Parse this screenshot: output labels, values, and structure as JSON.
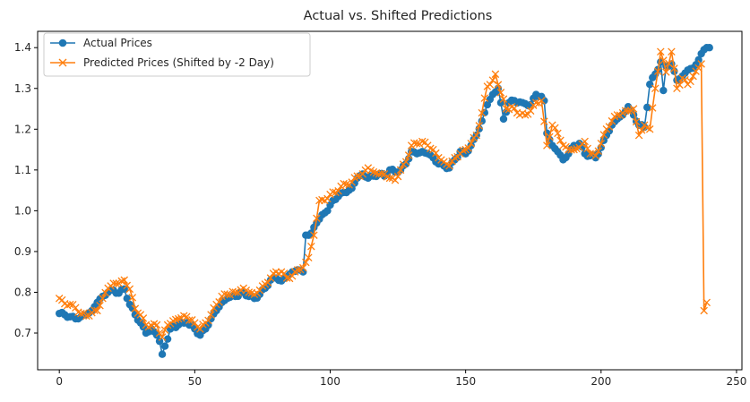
{
  "chart_data": {
    "type": "line",
    "title": "Actual vs. Shifted Predictions",
    "xlabel": "",
    "ylabel": "",
    "xlim": [
      -8,
      252
    ],
    "ylim": [
      0.61,
      1.44
    ],
    "x_ticks": [
      0,
      50,
      100,
      150,
      200,
      250
    ],
    "y_ticks": [
      0.7,
      0.8,
      0.9,
      1.0,
      1.1,
      1.2,
      1.3,
      1.4
    ],
    "x_tick_labels": [
      "0",
      "50",
      "100",
      "150",
      "200",
      "250"
    ],
    "y_tick_labels": [
      "0.7",
      "0.8",
      "0.9",
      "1.0",
      "1.1",
      "1.2",
      "1.3",
      "1.4"
    ],
    "grid": false,
    "legend_position": "top-left",
    "series": [
      {
        "name": "Actual Prices",
        "color": "#1f77b4",
        "marker": "circle",
        "anchors": [
          [
            0,
            0.748
          ],
          [
            2,
            0.745
          ],
          [
            4,
            0.74
          ],
          [
            6,
            0.735
          ],
          [
            8,
            0.74
          ],
          [
            10,
            0.745
          ],
          [
            12,
            0.755
          ],
          [
            14,
            0.775
          ],
          [
            16,
            0.79
          ],
          [
            18,
            0.8
          ],
          [
            20,
            0.805
          ],
          [
            22,
            0.798
          ],
          [
            24,
            0.808
          ],
          [
            26,
            0.77
          ],
          [
            28,
            0.745
          ],
          [
            30,
            0.725
          ],
          [
            32,
            0.7
          ],
          [
            34,
            0.71
          ],
          [
            36,
            0.695
          ],
          [
            37,
            0.68
          ],
          [
            38,
            0.648
          ],
          [
            39,
            0.668
          ],
          [
            41,
            0.71
          ],
          [
            44,
            0.72
          ],
          [
            47,
            0.725
          ],
          [
            50,
            0.71
          ],
          [
            52,
            0.695
          ],
          [
            54,
            0.71
          ],
          [
            56,
            0.735
          ],
          [
            58,
            0.755
          ],
          [
            60,
            0.775
          ],
          [
            62,
            0.785
          ],
          [
            65,
            0.79
          ],
          [
            68,
            0.8
          ],
          [
            70,
            0.79
          ],
          [
            72,
            0.785
          ],
          [
            74,
            0.795
          ],
          [
            76,
            0.81
          ],
          [
            78,
            0.83
          ],
          [
            80,
            0.835
          ],
          [
            82,
            0.828
          ],
          [
            84,
            0.838
          ],
          [
            86,
            0.85
          ],
          [
            88,
            0.855
          ],
          [
            90,
            0.85
          ],
          [
            91,
            0.94
          ],
          [
            93,
            0.945
          ],
          [
            95,
            0.97
          ],
          [
            97,
            0.99
          ],
          [
            99,
            1.0
          ],
          [
            101,
            1.025
          ],
          [
            103,
            1.035
          ],
          [
            105,
            1.045
          ],
          [
            108,
            1.055
          ],
          [
            110,
            1.08
          ],
          [
            112,
            1.09
          ],
          [
            114,
            1.08
          ],
          [
            116,
            1.085
          ],
          [
            118,
            1.09
          ],
          [
            120,
            1.085
          ],
          [
            122,
            1.1
          ],
          [
            124,
            1.095
          ],
          [
            126,
            1.1
          ],
          [
            128,
            1.115
          ],
          [
            130,
            1.145
          ],
          [
            132,
            1.14
          ],
          [
            134,
            1.145
          ],
          [
            136,
            1.14
          ],
          [
            138,
            1.13
          ],
          [
            140,
            1.115
          ],
          [
            142,
            1.11
          ],
          [
            144,
            1.105
          ],
          [
            146,
            1.125
          ],
          [
            148,
            1.145
          ],
          [
            150,
            1.14
          ],
          [
            152,
            1.16
          ],
          [
            154,
            1.185
          ],
          [
            156,
            1.22
          ],
          [
            158,
            1.26
          ],
          [
            160,
            1.285
          ],
          [
            162,
            1.3
          ],
          [
            164,
            1.225
          ],
          [
            166,
            1.265
          ],
          [
            168,
            1.27
          ],
          [
            171,
            1.265
          ],
          [
            174,
            1.26
          ],
          [
            176,
            1.285
          ],
          [
            178,
            1.28
          ],
          [
            179,
            1.27
          ],
          [
            180,
            1.19
          ],
          [
            182,
            1.16
          ],
          [
            184,
            1.145
          ],
          [
            186,
            1.125
          ],
          [
            188,
            1.14
          ],
          [
            190,
            1.16
          ],
          [
            192,
            1.165
          ],
          [
            194,
            1.14
          ],
          [
            196,
            1.135
          ],
          [
            198,
            1.13
          ],
          [
            200,
            1.155
          ],
          [
            202,
            1.185
          ],
          [
            204,
            1.21
          ],
          [
            206,
            1.225
          ],
          [
            208,
            1.235
          ],
          [
            210,
            1.255
          ],
          [
            212,
            1.235
          ],
          [
            214,
            1.21
          ],
          [
            216,
            1.205
          ],
          [
            218,
            1.31
          ],
          [
            220,
            1.335
          ],
          [
            222,
            1.365
          ],
          [
            223,
            1.295
          ],
          [
            224,
            1.355
          ],
          [
            226,
            1.36
          ],
          [
            228,
            1.32
          ],
          [
            230,
            1.33
          ],
          [
            232,
            1.345
          ],
          [
            234,
            1.35
          ],
          [
            236,
            1.37
          ],
          [
            237,
            1.385
          ],
          [
            238,
            1.395
          ],
          [
            239,
            1.4
          ],
          [
            240,
            1.4
          ]
        ]
      },
      {
        "name": "Predicted Prices (Shifted by -2 Day)",
        "color": "#ff7f0e",
        "marker": "x",
        "anchors": [
          [
            0,
            0.785
          ],
          [
            2,
            0.772
          ],
          [
            4,
            0.77
          ],
          [
            6,
            0.762
          ],
          [
            8,
            0.748
          ],
          [
            10,
            0.742
          ],
          [
            12,
            0.75
          ],
          [
            14,
            0.755
          ],
          [
            16,
            0.785
          ],
          [
            18,
            0.81
          ],
          [
            20,
            0.822
          ],
          [
            22,
            0.822
          ],
          [
            24,
            0.83
          ],
          [
            26,
            0.808
          ],
          [
            28,
            0.76
          ],
          [
            30,
            0.745
          ],
          [
            32,
            0.72
          ],
          [
            34,
            0.718
          ],
          [
            36,
            0.72
          ],
          [
            37,
            0.7
          ],
          [
            38,
            0.69
          ],
          [
            40,
            0.72
          ],
          [
            42,
            0.73
          ],
          [
            44,
            0.735
          ],
          [
            47,
            0.74
          ],
          [
            50,
            0.725
          ],
          [
            52,
            0.71
          ],
          [
            54,
            0.725
          ],
          [
            56,
            0.745
          ],
          [
            58,
            0.77
          ],
          [
            60,
            0.79
          ],
          [
            62,
            0.795
          ],
          [
            65,
            0.8
          ],
          [
            68,
            0.81
          ],
          [
            70,
            0.8
          ],
          [
            72,
            0.795
          ],
          [
            74,
            0.805
          ],
          [
            76,
            0.82
          ],
          [
            78,
            0.835
          ],
          [
            80,
            0.85
          ],
          [
            82,
            0.85
          ],
          [
            84,
            0.835
          ],
          [
            86,
            0.84
          ],
          [
            88,
            0.855
          ],
          [
            90,
            0.86
          ],
          [
            92,
            0.885
          ],
          [
            94,
            0.94
          ],
          [
            96,
            1.025
          ],
          [
            98,
            1.025
          ],
          [
            100,
            1.04
          ],
          [
            102,
            1.045
          ],
          [
            104,
            1.06
          ],
          [
            106,
            1.065
          ],
          [
            108,
            1.07
          ],
          [
            110,
            1.085
          ],
          [
            112,
            1.09
          ],
          [
            114,
            1.105
          ],
          [
            116,
            1.095
          ],
          [
            118,
            1.09
          ],
          [
            120,
            1.09
          ],
          [
            122,
            1.08
          ],
          [
            124,
            1.075
          ],
          [
            126,
            1.1
          ],
          [
            128,
            1.12
          ],
          [
            130,
            1.16
          ],
          [
            132,
            1.165
          ],
          [
            134,
            1.17
          ],
          [
            136,
            1.16
          ],
          [
            138,
            1.15
          ],
          [
            140,
            1.13
          ],
          [
            142,
            1.12
          ],
          [
            144,
            1.11
          ],
          [
            146,
            1.13
          ],
          [
            148,
            1.14
          ],
          [
            150,
            1.15
          ],
          [
            152,
            1.165
          ],
          [
            154,
            1.185
          ],
          [
            156,
            1.24
          ],
          [
            158,
            1.305
          ],
          [
            160,
            1.32
          ],
          [
            161,
            1.335
          ],
          [
            163,
            1.29
          ],
          [
            165,
            1.25
          ],
          [
            167,
            1.255
          ],
          [
            169,
            1.24
          ],
          [
            172,
            1.235
          ],
          [
            174,
            1.245
          ],
          [
            176,
            1.265
          ],
          [
            178,
            1.27
          ],
          [
            180,
            1.16
          ],
          [
            182,
            1.21
          ],
          [
            184,
            1.19
          ],
          [
            186,
            1.16
          ],
          [
            188,
            1.15
          ],
          [
            190,
            1.15
          ],
          [
            192,
            1.155
          ],
          [
            194,
            1.17
          ],
          [
            196,
            1.14
          ],
          [
            198,
            1.135
          ],
          [
            200,
            1.165
          ],
          [
            202,
            1.2
          ],
          [
            204,
            1.22
          ],
          [
            206,
            1.235
          ],
          [
            208,
            1.24
          ],
          [
            210,
            1.245
          ],
          [
            212,
            1.25
          ],
          [
            214,
            1.185
          ],
          [
            216,
            1.21
          ],
          [
            218,
            1.2
          ],
          [
            220,
            1.3
          ],
          [
            222,
            1.39
          ],
          [
            224,
            1.34
          ],
          [
            226,
            1.39
          ],
          [
            228,
            1.3
          ],
          [
            230,
            1.325
          ],
          [
            232,
            1.31
          ],
          [
            234,
            1.33
          ],
          [
            236,
            1.35
          ],
          [
            237,
            1.36
          ],
          [
            238,
            0.755
          ],
          [
            239,
            0.775
          ]
        ]
      }
    ]
  }
}
